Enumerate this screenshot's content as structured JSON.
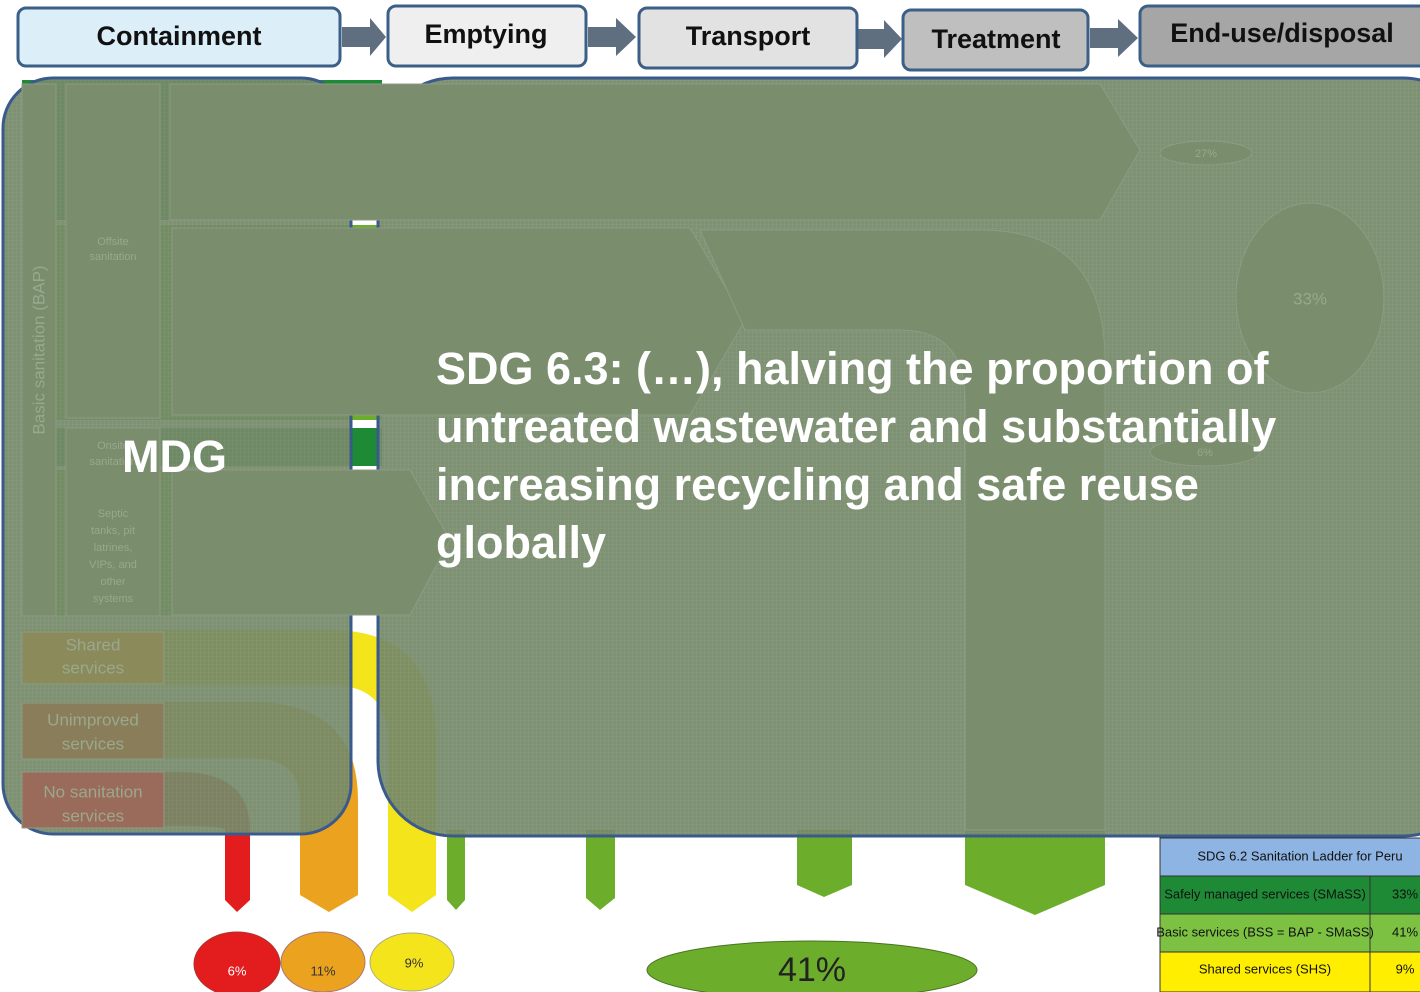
{
  "stages": [
    "Containment",
    "Emptying",
    "Transport",
    "Treatment",
    "End-use/disposal"
  ],
  "mdg": "MDG",
  "sdg_lines": [
    "SDG 6.3: (…), halving the proportion of",
    "untreated wastewater and substantially",
    "increasing recycling and safe reuse",
    "globally"
  ],
  "containment": {
    "basic": "Basic sanitation (BAP)",
    "offsite": [
      "Offsite",
      "sanitation"
    ],
    "onsite": [
      "Onsite",
      "sanitation"
    ],
    "systems": [
      "Septic",
      "tanks, pit",
      "latrines,",
      "VIPs, and",
      "other",
      "systems"
    ],
    "shared": [
      "Shared",
      "services"
    ],
    "unimproved": [
      "Unimproved",
      "services"
    ],
    "none": [
      "No sanitation",
      "services"
    ]
  },
  "shares": {
    "reuse": "27%",
    "treated": "33%",
    "onsite": "6%",
    "no_sanitation": "6%",
    "unimproved": "11%",
    "shared": "9%",
    "untreated": "41%"
  },
  "table": {
    "title": "SDG 6.2 Sanitation Ladder for Peru",
    "rows": [
      [
        "Safely managed services (SMaSS)",
        "33%"
      ],
      [
        "Basic services (BSS = BAP - SMaSS)",
        "41%"
      ],
      [
        "Shared services (SHS)",
        "9%"
      ]
    ]
  }
}
